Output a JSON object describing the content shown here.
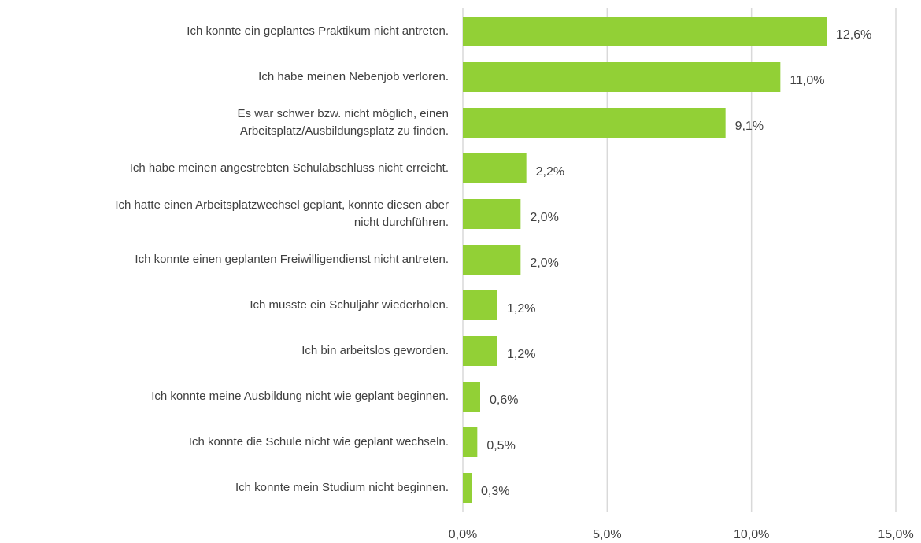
{
  "chart_data": {
    "type": "hbar",
    "categories": [
      "Ich konnte ein geplantes Praktikum nicht antreten.",
      "Ich habe meinen Nebenjob verloren.",
      "Es war schwer bzw. nicht möglich, einen\nArbeitsplatz/Ausbildungsplatz zu finden.",
      "Ich habe meinen angestrebten Schulabschluss nicht erreicht.",
      "Ich hatte einen Arbeitsplatzwechsel geplant, konnte diesen aber\nnicht durchführen.",
      "Ich konnte einen geplanten Freiwilligendienst nicht antreten.",
      "Ich musste ein Schuljahr wiederholen.",
      "Ich bin arbeitslos geworden.",
      "Ich konnte meine Ausbildung nicht wie geplant beginnen.",
      "Ich konnte die Schule nicht wie geplant wechseln.",
      "Ich konnte mein Studium nicht beginnen."
    ],
    "values": [
      12.6,
      11.0,
      9.1,
      2.2,
      2.0,
      2.0,
      1.2,
      1.2,
      0.6,
      0.5,
      0.3
    ],
    "value_labels": [
      "12,6%",
      "11,0%",
      "9,1%",
      "2,2%",
      "2,0%",
      "2,0%",
      "1,2%",
      "1,2%",
      "0,6%",
      "0,5%",
      "0,3%"
    ],
    "color": "#92d036",
    "xlim": [
      0,
      15
    ],
    "xticks": [
      {
        "value": 0,
        "label": "0,0%"
      },
      {
        "value": 5,
        "label": "5,0%"
      },
      {
        "value": 10,
        "label": "10,0%"
      },
      {
        "value": 15,
        "label": "15,0%"
      }
    ],
    "grid": true
  }
}
